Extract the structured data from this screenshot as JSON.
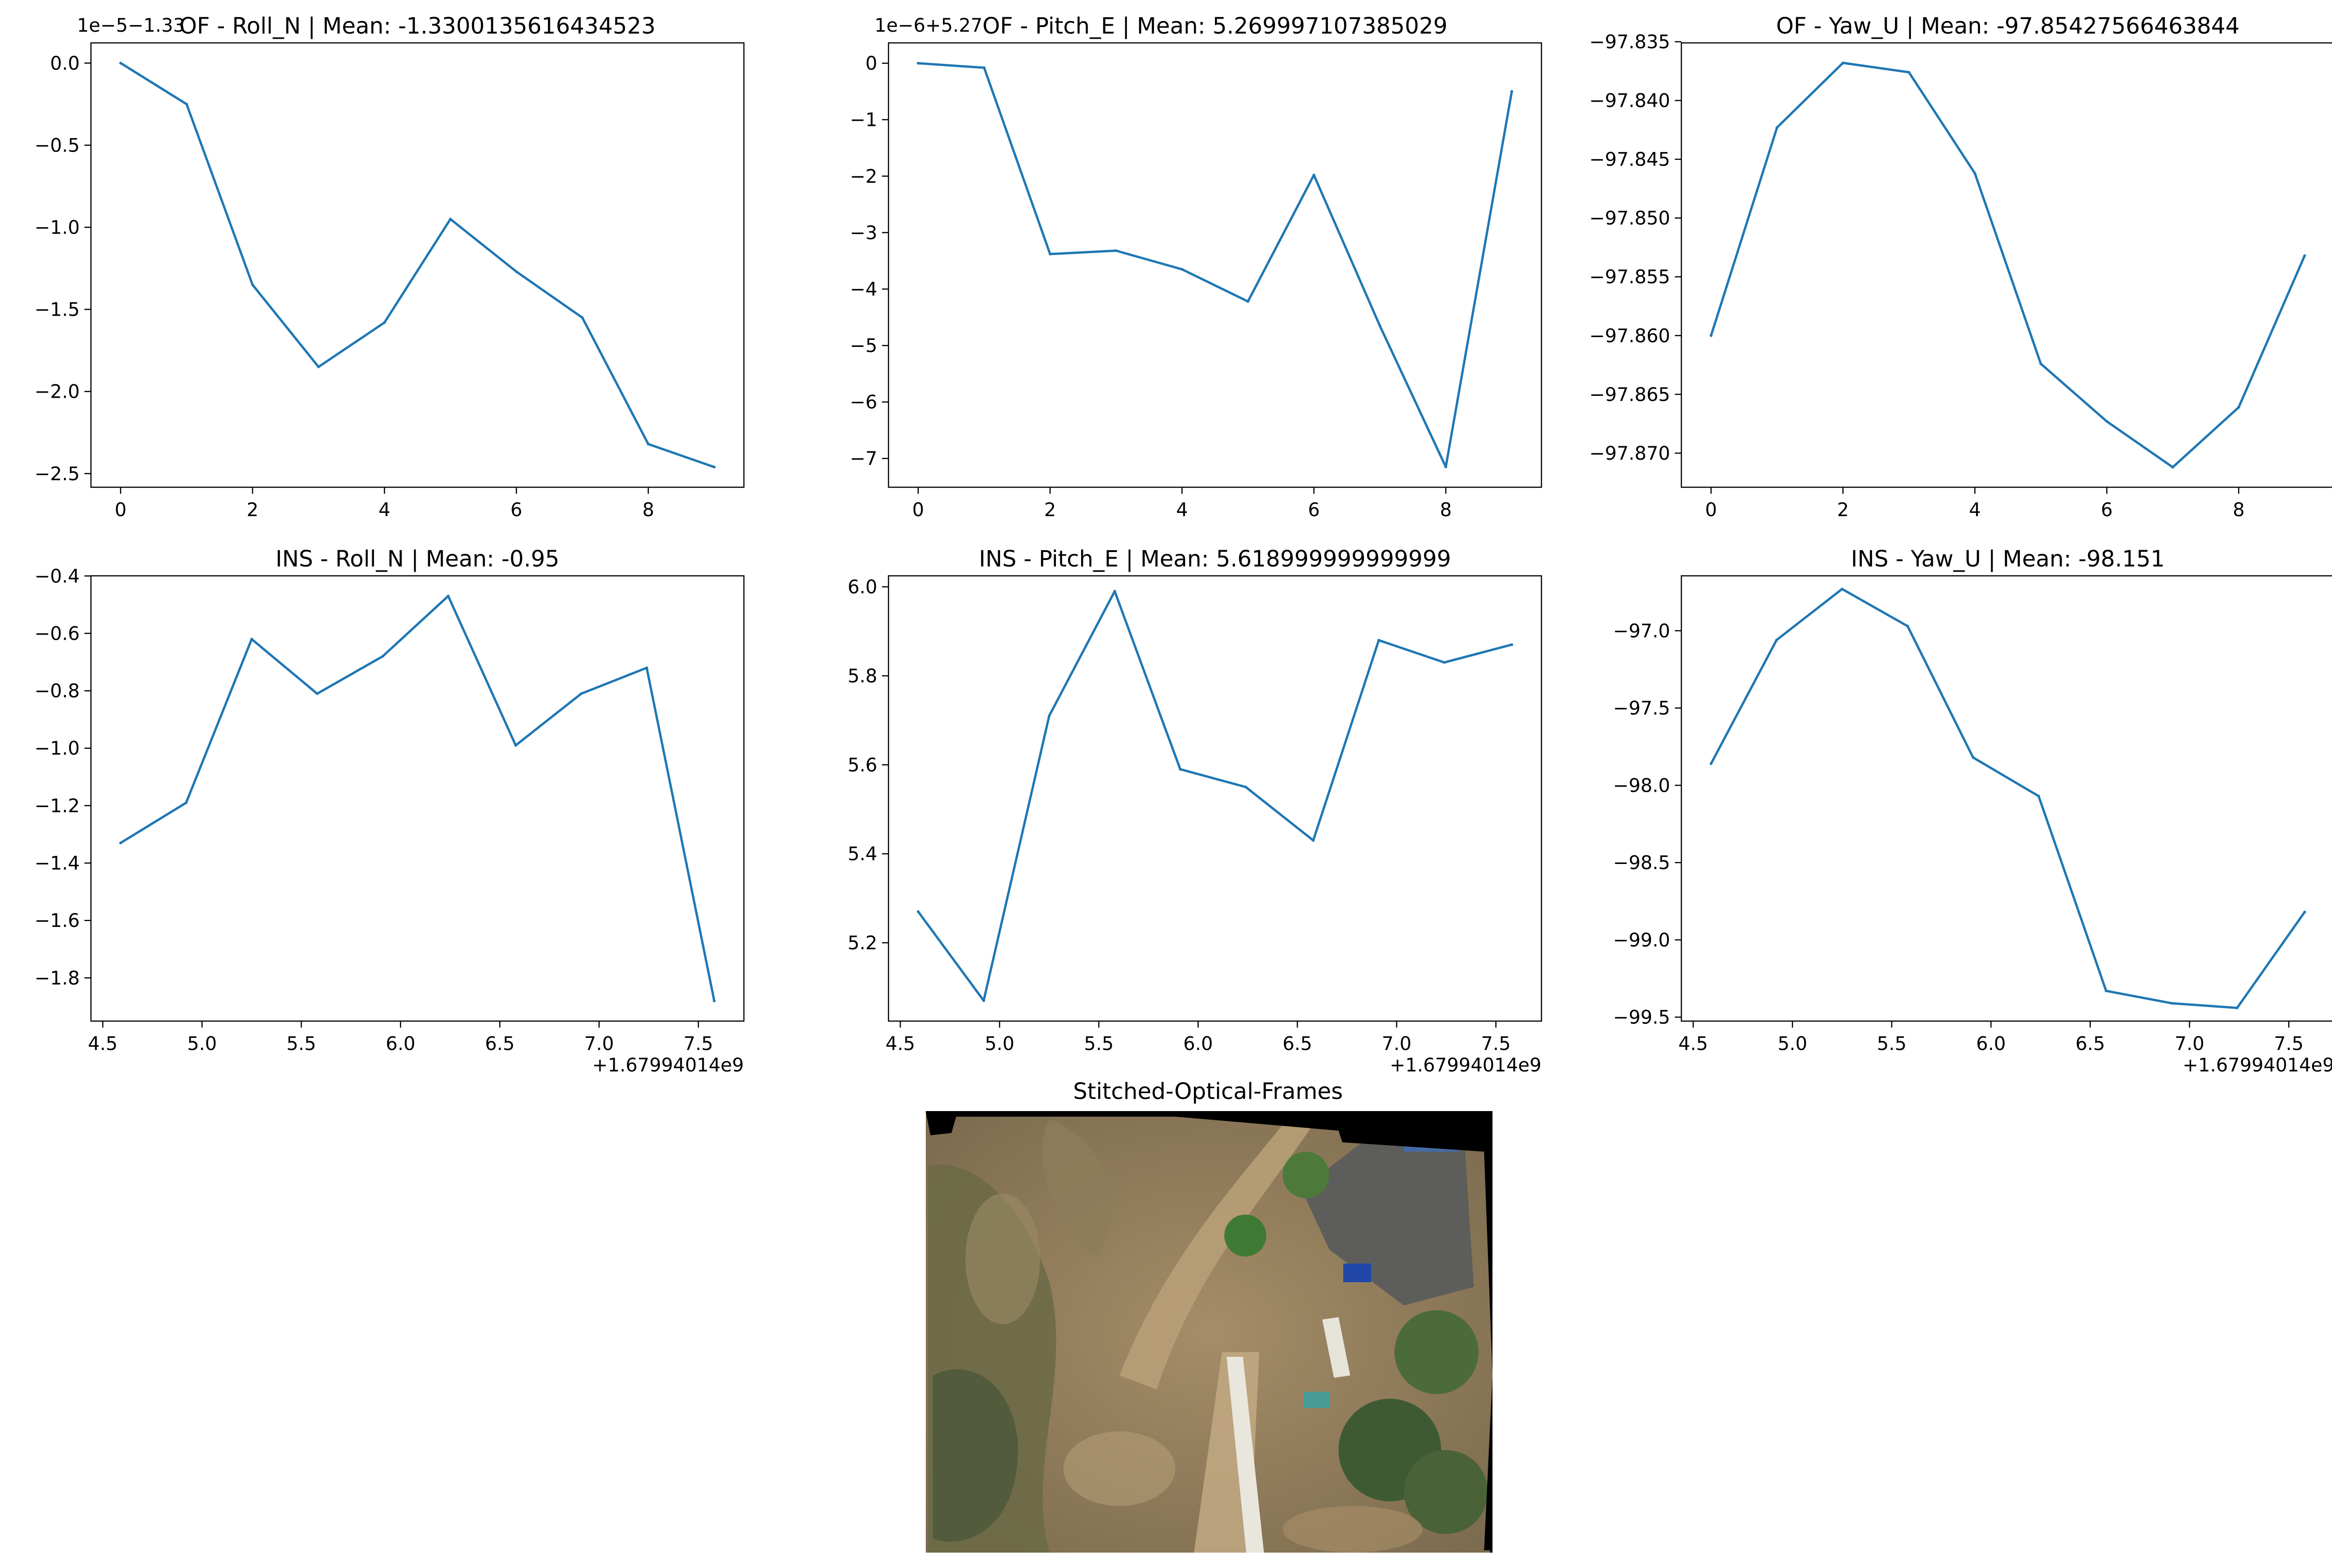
{
  "chart_data": [
    {
      "type": "line",
      "title": "OF - Roll_N | Mean: -1.3300135616434523",
      "offset_text": "1e−5−1.33",
      "x": [
        0,
        1,
        2,
        3,
        4,
        5,
        6,
        7,
        8,
        9
      ],
      "y": [
        0.0,
        -0.25,
        -1.35,
        -1.85,
        -1.58,
        -0.95,
        -1.27,
        -1.55,
        -2.32,
        -2.46
      ],
      "xlim": [
        -0.45,
        9.45
      ],
      "ylim": [
        -2.583,
        0.123
      ],
      "xticks": [
        0,
        2,
        4,
        6,
        8
      ],
      "xtick_labels": [
        "0",
        "2",
        "4",
        "6",
        "8"
      ],
      "yticks": [
        0.0,
        -0.5,
        -1.0,
        -1.5,
        -2.0,
        -2.5
      ],
      "ytick_labels": [
        "0.0",
        "−0.5",
        "−1.0",
        "−1.5",
        "−2.0",
        "−2.5"
      ],
      "color": "#1f77b4"
    },
    {
      "type": "line",
      "title": "OF - Pitch_E | Mean: 5.269997107385029",
      "offset_text": "1e−6+5.27",
      "x": [
        0,
        1,
        2,
        3,
        4,
        5,
        6,
        7,
        8,
        9
      ],
      "y": [
        0.0,
        -0.08,
        -3.38,
        -3.32,
        -3.65,
        -4.22,
        -1.98,
        -4.65,
        -7.15,
        -0.5
      ],
      "xlim": [
        -0.45,
        9.45
      ],
      "ylim": [
        -7.51,
        0.36
      ],
      "xticks": [
        0,
        2,
        4,
        6,
        8
      ],
      "xtick_labels": [
        "0",
        "2",
        "4",
        "6",
        "8"
      ],
      "yticks": [
        0,
        -1,
        -2,
        -3,
        -4,
        -5,
        -6,
        -7
      ],
      "ytick_labels": [
        "0",
        "−1",
        "−2",
        "−3",
        "−4",
        "−5",
        "−6",
        "−7"
      ],
      "color": "#1f77b4"
    },
    {
      "type": "line",
      "title": "OF - Yaw_U | Mean: -97.85427566463844",
      "offset_text": "",
      "x": [
        0,
        1,
        2,
        3,
        4,
        5,
        6,
        7,
        8,
        9
      ],
      "y": [
        -97.86,
        -97.8423,
        -97.8368,
        -97.8376,
        -97.8462,
        -97.8624,
        -97.8673,
        -97.8712,
        -97.8661,
        -97.8532
      ],
      "xlim": [
        -0.45,
        9.45
      ],
      "ylim": [
        -97.8729,
        -97.8351
      ],
      "xticks": [
        0,
        2,
        4,
        6,
        8
      ],
      "xtick_labels": [
        "0",
        "2",
        "4",
        "6",
        "8"
      ],
      "yticks": [
        -97.835,
        -97.84,
        -97.845,
        -97.85,
        -97.855,
        -97.86,
        -97.865,
        -97.87
      ],
      "ytick_labels": [
        "−97.835",
        "−97.840",
        "−97.845",
        "−97.850",
        "−97.855",
        "−97.860",
        "−97.865",
        "−97.870"
      ],
      "color": "#1f77b4"
    },
    {
      "type": "line",
      "title": "INS - Roll_N | Mean: -0.95",
      "offset_text": "+1.67994014e9",
      "x": [
        4.59,
        4.92,
        5.25,
        5.58,
        5.91,
        6.24,
        6.58,
        6.91,
        7.24,
        7.58
      ],
      "y": [
        -1.33,
        -1.19,
        -0.62,
        -0.81,
        -0.68,
        -0.47,
        -0.99,
        -0.81,
        -0.72,
        -1.88
      ],
      "xlim": [
        4.4405,
        7.7295
      ],
      "ylim": [
        -1.9505,
        -0.3995
      ],
      "xticks": [
        4.5,
        5.0,
        5.5,
        6.0,
        6.5,
        7.0,
        7.5
      ],
      "xtick_labels": [
        "4.5",
        "5.0",
        "5.5",
        "6.0",
        "6.5",
        "7.0",
        "7.5"
      ],
      "yticks": [
        -0.4,
        -0.6,
        -0.8,
        -1.0,
        -1.2,
        -1.4,
        -1.6,
        -1.8
      ],
      "ytick_labels": [
        "−0.4",
        "−0.6",
        "−0.8",
        "−1.0",
        "−1.2",
        "−1.4",
        "−1.6",
        "−1.8"
      ],
      "color": "#1f77b4"
    },
    {
      "type": "line",
      "title": "INS - Pitch_E | Mean: 5.618999999999999",
      "offset_text": "+1.67994014e9",
      "x": [
        4.59,
        4.92,
        5.25,
        5.58,
        5.91,
        6.24,
        6.58,
        6.91,
        7.24,
        7.58
      ],
      "y": [
        5.27,
        5.07,
        5.71,
        5.99,
        5.59,
        5.55,
        5.43,
        5.88,
        5.83,
        5.87
      ],
      "xlim": [
        4.4405,
        7.7295
      ],
      "ylim": [
        5.024,
        6.0247
      ],
      "xticks": [
        4.5,
        5.0,
        5.5,
        6.0,
        6.5,
        7.0,
        7.5
      ],
      "xtick_labels": [
        "4.5",
        "5.0",
        "5.5",
        "6.0",
        "6.5",
        "7.0",
        "7.5"
      ],
      "yticks": [
        6.0,
        5.8,
        5.6,
        5.4,
        5.2
      ],
      "ytick_labels": [
        "6.0",
        "5.8",
        "5.6",
        "5.4",
        "5.2"
      ],
      "color": "#1f77b4"
    },
    {
      "type": "line",
      "title": "INS - Yaw_U | Mean: -98.151",
      "offset_text": "+1.67994014e9",
      "x": [
        4.59,
        4.92,
        5.25,
        5.58,
        5.91,
        6.24,
        6.58,
        6.91,
        7.24,
        7.58
      ],
      "y": [
        -97.86,
        -97.06,
        -96.73,
        -96.97,
        -97.82,
        -98.07,
        -99.33,
        -99.41,
        -99.44,
        -98.82
      ],
      "xlim": [
        4.4405,
        7.7295
      ],
      "ylim": [
        -99.5255,
        -96.6445
      ],
      "xticks": [
        4.5,
        5.0,
        5.5,
        6.0,
        6.5,
        7.0,
        7.5
      ],
      "xtick_labels": [
        "4.5",
        "5.0",
        "5.5",
        "6.0",
        "6.5",
        "7.0",
        "7.5"
      ],
      "yticks": [
        -97.0,
        -97.5,
        -98.0,
        -98.5,
        -99.0,
        -99.5
      ],
      "ytick_labels": [
        "−97.0",
        "−97.5",
        "−98.0",
        "−98.5",
        "−99.0",
        "−99.5"
      ],
      "color": "#1f77b4"
    }
  ],
  "image_panel": {
    "title": "Stitched-Optical-Frames"
  }
}
